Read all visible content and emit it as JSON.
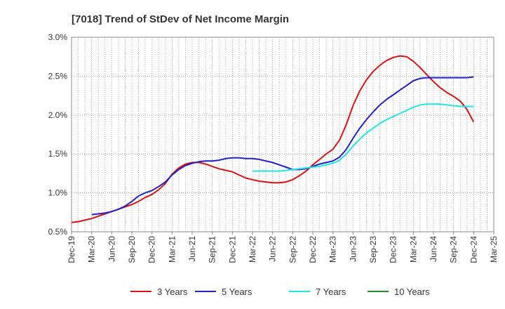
{
  "chart_data": {
    "type": "line",
    "title": "[7018]  Trend of StDev of Net Income Margin",
    "xlabel": "",
    "ylabel": "",
    "x_ticks": [
      "Dec-19",
      "Mar-20",
      "Jun-20",
      "Sep-20",
      "Dec-20",
      "Mar-21",
      "Jun-21",
      "Sep-21",
      "Dec-21",
      "Mar-22",
      "Jun-22",
      "Sep-22",
      "Dec-22",
      "Mar-23",
      "Jun-23",
      "Sep-23",
      "Dec-23",
      "Mar-24",
      "Jun-24",
      "Sep-24",
      "Dec-24",
      "Mar-25"
    ],
    "y_ticks": [
      "0.5%",
      "1.0%",
      "1.5%",
      "2.0%",
      "2.5%",
      "3.0%"
    ],
    "ylim": [
      0.5,
      3.0
    ],
    "grid": true,
    "legend_position": "bottom",
    "series": [
      {
        "name": "3 Years",
        "color": "#dd1111",
        "points": [
          [
            "Dec-19",
            0.62
          ],
          [
            "Jan-20",
            0.63
          ],
          [
            "Feb-20",
            0.65
          ],
          [
            "Mar-20",
            0.67
          ],
          [
            "Apr-20",
            0.7
          ],
          [
            "May-20",
            0.73
          ],
          [
            "Jun-20",
            0.76
          ],
          [
            "Jul-20",
            0.79
          ],
          [
            "Aug-20",
            0.82
          ],
          [
            "Sep-20",
            0.85
          ],
          [
            "Oct-20",
            0.89
          ],
          [
            "Nov-20",
            0.94
          ],
          [
            "Dec-20",
            0.98
          ],
          [
            "Jan-21",
            1.04
          ],
          [
            "Feb-21",
            1.12
          ],
          [
            "Mar-21",
            1.24
          ],
          [
            "Apr-21",
            1.32
          ],
          [
            "May-21",
            1.37
          ],
          [
            "Jun-21",
            1.39
          ],
          [
            "Jul-21",
            1.39
          ],
          [
            "Aug-21",
            1.37
          ],
          [
            "Sep-21",
            1.34
          ],
          [
            "Oct-21",
            1.31
          ],
          [
            "Nov-21",
            1.29
          ],
          [
            "Dec-21",
            1.27
          ],
          [
            "Jan-22",
            1.23
          ],
          [
            "Feb-22",
            1.19
          ],
          [
            "Mar-22",
            1.17
          ],
          [
            "Apr-22",
            1.15
          ],
          [
            "May-22",
            1.14
          ],
          [
            "Jun-22",
            1.13
          ],
          [
            "Jul-22",
            1.13
          ],
          [
            "Aug-22",
            1.14
          ],
          [
            "Sep-22",
            1.17
          ],
          [
            "Oct-22",
            1.22
          ],
          [
            "Nov-22",
            1.28
          ],
          [
            "Dec-22",
            1.36
          ],
          [
            "Jan-23",
            1.43
          ],
          [
            "Feb-23",
            1.5
          ],
          [
            "Mar-23",
            1.56
          ],
          [
            "Apr-23",
            1.68
          ],
          [
            "May-23",
            1.88
          ],
          [
            "Jun-23",
            2.12
          ],
          [
            "Jul-23",
            2.31
          ],
          [
            "Aug-23",
            2.45
          ],
          [
            "Sep-23",
            2.56
          ],
          [
            "Oct-23",
            2.64
          ],
          [
            "Nov-23",
            2.7
          ],
          [
            "Dec-23",
            2.74
          ],
          [
            "Jan-24",
            2.76
          ],
          [
            "Feb-24",
            2.75
          ],
          [
            "Mar-24",
            2.69
          ],
          [
            "Apr-24",
            2.61
          ],
          [
            "May-24",
            2.52
          ],
          [
            "Jun-24",
            2.43
          ],
          [
            "Jul-24",
            2.35
          ],
          [
            "Aug-24",
            2.29
          ],
          [
            "Sep-24",
            2.24
          ],
          [
            "Oct-24",
            2.18
          ],
          [
            "Nov-24",
            2.07
          ],
          [
            "Dec-24",
            1.91
          ]
        ]
      },
      {
        "name": "5 Years",
        "color": "#1f1fcc",
        "points": [
          [
            "Mar-20",
            0.72
          ],
          [
            "Apr-20",
            0.73
          ],
          [
            "May-20",
            0.74
          ],
          [
            "Jun-20",
            0.76
          ],
          [
            "Jul-20",
            0.79
          ],
          [
            "Aug-20",
            0.83
          ],
          [
            "Sep-20",
            0.89
          ],
          [
            "Oct-20",
            0.96
          ],
          [
            "Nov-20",
            1.0
          ],
          [
            "Dec-20",
            1.03
          ],
          [
            "Jan-21",
            1.08
          ],
          [
            "Feb-21",
            1.14
          ],
          [
            "Mar-21",
            1.23
          ],
          [
            "Apr-21",
            1.3
          ],
          [
            "May-21",
            1.35
          ],
          [
            "Jun-21",
            1.38
          ],
          [
            "Jul-21",
            1.4
          ],
          [
            "Aug-21",
            1.41
          ],
          [
            "Sep-21",
            1.41
          ],
          [
            "Oct-21",
            1.42
          ],
          [
            "Nov-21",
            1.44
          ],
          [
            "Dec-21",
            1.45
          ],
          [
            "Jan-22",
            1.45
          ],
          [
            "Feb-22",
            1.44
          ],
          [
            "Mar-22",
            1.44
          ],
          [
            "Apr-22",
            1.43
          ],
          [
            "May-22",
            1.41
          ],
          [
            "Jun-22",
            1.39
          ],
          [
            "Jul-22",
            1.36
          ],
          [
            "Aug-22",
            1.33
          ],
          [
            "Sep-22",
            1.3
          ],
          [
            "Oct-22",
            1.3
          ],
          [
            "Nov-22",
            1.31
          ],
          [
            "Dec-22",
            1.34
          ],
          [
            "Jan-23",
            1.37
          ],
          [
            "Feb-23",
            1.39
          ],
          [
            "Mar-23",
            1.41
          ],
          [
            "Apr-23",
            1.46
          ],
          [
            "May-23",
            1.56
          ],
          [
            "Jun-23",
            1.7
          ],
          [
            "Jul-23",
            1.83
          ],
          [
            "Aug-23",
            1.94
          ],
          [
            "Sep-23",
            2.04
          ],
          [
            "Oct-23",
            2.13
          ],
          [
            "Nov-23",
            2.2
          ],
          [
            "Dec-23",
            2.26
          ],
          [
            "Jan-24",
            2.32
          ],
          [
            "Feb-24",
            2.38
          ],
          [
            "Mar-24",
            2.44
          ],
          [
            "Apr-24",
            2.47
          ],
          [
            "May-24",
            2.48
          ],
          [
            "Jun-24",
            2.48
          ],
          [
            "Jul-24",
            2.48
          ],
          [
            "Aug-24",
            2.48
          ],
          [
            "Sep-24",
            2.48
          ],
          [
            "Oct-24",
            2.48
          ],
          [
            "Nov-24",
            2.48
          ],
          [
            "Dec-24",
            2.49
          ]
        ]
      },
      {
        "name": "7 Years",
        "color": "#22e6e6",
        "points": [
          [
            "Mar-22",
            1.28
          ],
          [
            "Apr-22",
            1.28
          ],
          [
            "May-22",
            1.28
          ],
          [
            "Jun-22",
            1.28
          ],
          [
            "Jul-22",
            1.28
          ],
          [
            "Aug-22",
            1.29
          ],
          [
            "Sep-22",
            1.3
          ],
          [
            "Oct-22",
            1.31
          ],
          [
            "Nov-22",
            1.32
          ],
          [
            "Dec-22",
            1.33
          ],
          [
            "Jan-23",
            1.34
          ],
          [
            "Feb-23",
            1.36
          ],
          [
            "Mar-23",
            1.38
          ],
          [
            "Apr-23",
            1.42
          ],
          [
            "May-23",
            1.5
          ],
          [
            "Jun-23",
            1.6
          ],
          [
            "Jul-23",
            1.69
          ],
          [
            "Aug-23",
            1.77
          ],
          [
            "Sep-23",
            1.83
          ],
          [
            "Oct-23",
            1.89
          ],
          [
            "Nov-23",
            1.94
          ],
          [
            "Dec-23",
            1.98
          ],
          [
            "Jan-24",
            2.02
          ],
          [
            "Feb-24",
            2.06
          ],
          [
            "Mar-24",
            2.1
          ],
          [
            "Apr-24",
            2.13
          ],
          [
            "May-24",
            2.14
          ],
          [
            "Jun-24",
            2.14
          ],
          [
            "Jul-24",
            2.14
          ],
          [
            "Aug-24",
            2.13
          ],
          [
            "Sep-24",
            2.12
          ],
          [
            "Oct-24",
            2.11
          ],
          [
            "Nov-24",
            2.11
          ],
          [
            "Dec-24",
            2.11
          ]
        ]
      },
      {
        "name": "10 Years",
        "color": "#228b22",
        "points": []
      }
    ]
  }
}
